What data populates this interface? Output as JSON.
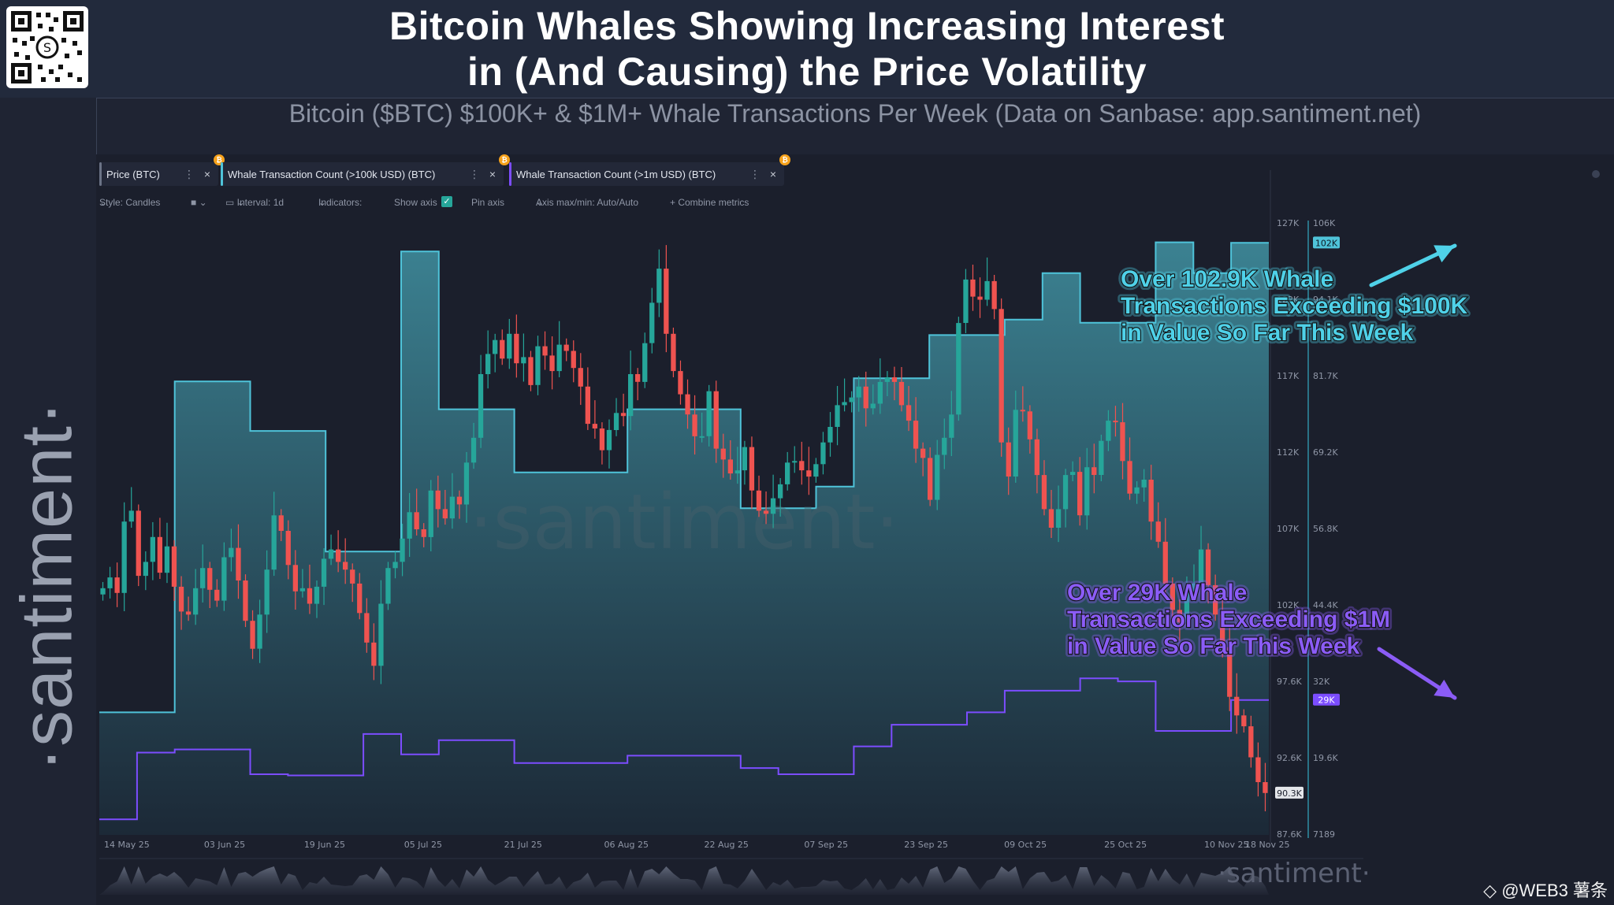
{
  "header": {
    "title_line1": "Bitcoin Whales Showing Increasing Interest",
    "title_line2": "in (And Causing) the Price Volatility",
    "subtitle": "Bitcoin ($BTC) $100K+ & $1M+ Whale Transactions Per Week (Data on Sanbase: app.santiment.net)"
  },
  "sidebar": {
    "brand": "·santiment·"
  },
  "tabs": [
    {
      "label": "Price (BTC)",
      "color": "#6b7386"
    },
    {
      "label": "Whale Transaction Count (>100k USD) (BTC)",
      "color": "#4fc3d9"
    },
    {
      "label": "Whale Transaction Count (>1m USD) (BTC)",
      "color": "#7c4dff"
    }
  ],
  "toolbar": {
    "style": "Style: Candles",
    "interval": "Interval: 1d",
    "indicators": "Indicators:",
    "show_axis": "Show axis",
    "pin_axis": "Pin axis",
    "axis_minmax": "Axis max/min: Auto/Auto",
    "combine": "+ Combine metrics"
  },
  "watermark": "·santiment·",
  "corner_brand": "◇ @WEB3 薯条",
  "colors": {
    "up": "#26a69a",
    "down": "#ef5350",
    "whale100k": "#4fc3d9",
    "whale1m": "#7c4dff",
    "annot100k": "#4fd1e8",
    "annot1m": "#8b5cf6"
  },
  "chart_data": {
    "type": "line",
    "subtype": "candlestick + step lines",
    "x_ticks": [
      "14 May 25",
      "03 Jun 25",
      "19 Jun 25",
      "05 Jul 25",
      "21 Jul 25",
      "06 Aug 25",
      "22 Aug 25",
      "07 Sep 25",
      "23 Sep 25",
      "09 Oct 25",
      "25 Oct 25",
      "10 Nov 25",
      "18 Nov 25"
    ],
    "price_axis_ticks": [
      "127K",
      "122K",
      "117K",
      "112K",
      "107K",
      "102K",
      "97.6K",
      "92.6K",
      "87.6K"
    ],
    "whale_axis_ticks": [
      "106K",
      "94.1K",
      "81.7K",
      "69.2K",
      "56.8K",
      "44.4K",
      "32K",
      "19.6K",
      "7189"
    ],
    "price_last_label": "90.3K",
    "whale100k_last_label": "102K",
    "whale1m_last_label": "29K",
    "price_ylim": [
      87600,
      127000
    ],
    "whale_ylim": [
      7189,
      106000
    ],
    "price_close": [
      103500,
      104200,
      103200,
      107800,
      108500,
      104300,
      105200,
      106800,
      104500,
      106200,
      103600,
      102000,
      101800,
      103500,
      104800,
      103400,
      102700,
      105500,
      106100,
      104000,
      101400,
      99600,
      101800,
      104700,
      108200,
      107200,
      105000,
      103300,
      103500,
      102500,
      103600,
      105400,
      106000,
      105200,
      104700,
      103800,
      101900,
      100000,
      98500,
      102500,
      104800,
      105200,
      106700,
      108400,
      107300,
      106800,
      109800,
      108600,
      108000,
      109400,
      108900,
      111600,
      113200,
      117300,
      118600,
      119500,
      118300,
      119900,
      118000,
      118400,
      116600,
      119100,
      118500,
      117500,
      119200,
      118800,
      117700,
      116500,
      114100,
      113800,
      112400,
      113700,
      114800,
      114600,
      117300,
      116800,
      119300,
      121900,
      124100,
      119900,
      117500,
      116000,
      114700,
      113300,
      113300,
      116200,
      112500,
      111800,
      110900,
      111100,
      112600,
      109800,
      108500,
      108300,
      109300,
      110200,
      111600,
      111700,
      111100,
      110700,
      111500,
      112900,
      113900,
      115300,
      115500,
      115800,
      116500,
      115100,
      115400,
      116800,
      117100,
      116800,
      115300,
      114300,
      112500,
      111900,
      109200,
      112100,
      113200,
      114700,
      120600,
      123400,
      122300,
      122100,
      123300,
      121500,
      112900,
      110700,
      115000,
      114900,
      113100,
      110800,
      108600,
      107400,
      108600,
      110800,
      111000,
      108200,
      111300,
      110800,
      113000,
      114300,
      114200,
      111700,
      109600,
      110000,
      110500,
      107800,
      106500,
      103800,
      102100,
      101300,
      103300,
      103800,
      106000,
      103700,
      101800,
      99700,
      96500,
      95300,
      94600,
      92600,
      91000,
      90300
    ],
    "whale100k_weekly": [
      27000,
      27000,
      80500,
      80500,
      72500,
      72500,
      53000,
      53000,
      101500,
      76000,
      76000,
      65800,
      65800,
      65800,
      76000,
      76000,
      76000,
      60000,
      60000,
      63500,
      81000,
      81000,
      88000,
      88000,
      90500,
      98000,
      90000,
      90000,
      103000,
      98000,
      102900
    ],
    "whale1m_weekly": [
      9700,
      20500,
      21000,
      21000,
      17000,
      16800,
      16800,
      23500,
      20200,
      22500,
      22500,
      18800,
      18800,
      18800,
      20000,
      20000,
      20000,
      18000,
      17000,
      17000,
      21500,
      25000,
      25000,
      27000,
      30500,
      30500,
      32500,
      32000,
      24000,
      24000,
      29000
    ],
    "annotations": [
      "Over 102.9K Whale Transactions Exceeding $100K in Value So Far This Week",
      "Over 29K Whale Transactions Exceeding $1M in Value So Far This Week"
    ]
  }
}
